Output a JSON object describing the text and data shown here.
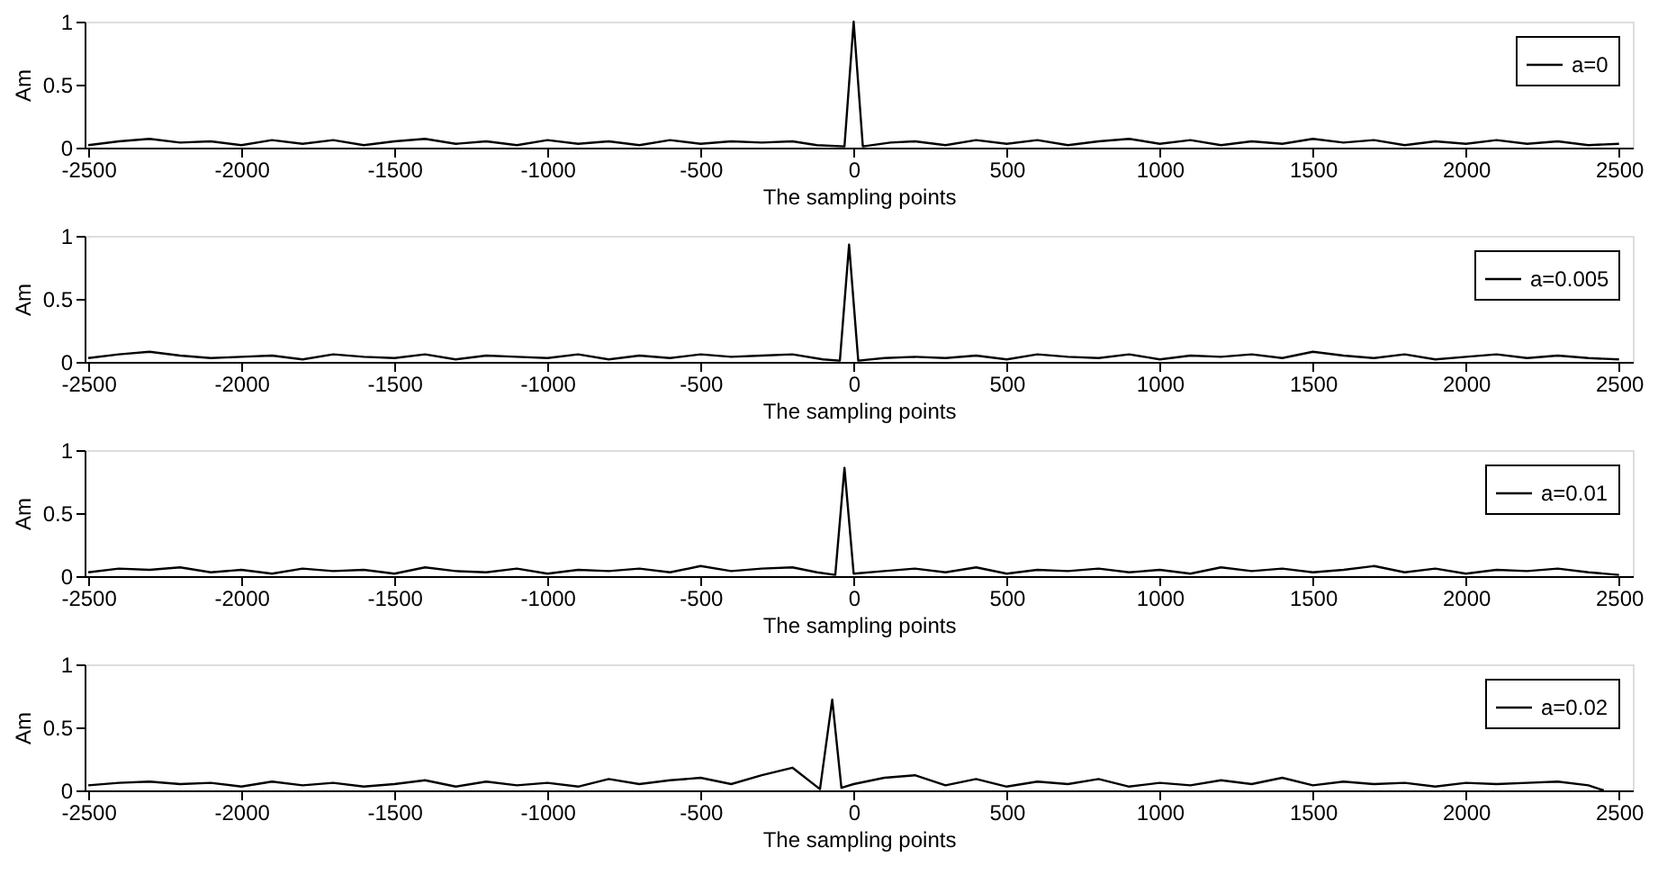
{
  "chart_data": [
    {
      "type": "line",
      "xlabel": "The sampling points",
      "ylabel": "Am",
      "xlim": [
        -2512,
        2545
      ],
      "xticks": [
        -2500,
        -2000,
        -1500,
        -1000,
        -500,
        0,
        500,
        1000,
        1500,
        2000,
        2500
      ],
      "ylim": [
        0,
        1
      ],
      "yticks": [
        0,
        0.5,
        1
      ],
      "grid": false,
      "legend": "top right",
      "x": [
        -2500,
        -2400,
        -2300,
        -2200,
        -2100,
        -2000,
        -1900,
        -1800,
        -1700,
        -1600,
        -1500,
        -1400,
        -1300,
        -1200,
        -1100,
        -1000,
        -900,
        -800,
        -700,
        -600,
        -500,
        -400,
        -300,
        -200,
        -120,
        -30,
        0,
        30,
        120,
        200,
        300,
        400,
        500,
        600,
        700,
        800,
        900,
        1000,
        1100,
        1200,
        1300,
        1400,
        1500,
        1600,
        1700,
        1800,
        1900,
        2000,
        2100,
        2200,
        2300,
        2400,
        2500
      ],
      "series": [
        {
          "name": "a=0",
          "color": "#000000",
          "values": [
            0.02,
            0.05,
            0.07,
            0.04,
            0.05,
            0.02,
            0.06,
            0.03,
            0.06,
            0.02,
            0.05,
            0.07,
            0.03,
            0.05,
            0.02,
            0.06,
            0.03,
            0.05,
            0.02,
            0.06,
            0.03,
            0.05,
            0.04,
            0.05,
            0.02,
            0.01,
            1.0,
            0.01,
            0.04,
            0.05,
            0.02,
            0.06,
            0.03,
            0.06,
            0.02,
            0.05,
            0.07,
            0.03,
            0.06,
            0.02,
            0.05,
            0.03,
            0.07,
            0.04,
            0.06,
            0.02,
            0.05,
            0.03,
            0.06,
            0.03,
            0.05,
            0.02,
            0.03
          ]
        }
      ]
    },
    {
      "type": "line",
      "xlabel": "The sampling points",
      "ylabel": "Am",
      "xlim": [
        -2512,
        2545
      ],
      "xticks": [
        -2500,
        -2000,
        -1500,
        -1000,
        -500,
        0,
        500,
        1000,
        1500,
        2000,
        2500
      ],
      "ylim": [
        0,
        1
      ],
      "yticks": [
        0,
        0.5,
        1
      ],
      "grid": false,
      "legend": "top right",
      "x": [
        -2500,
        -2400,
        -2300,
        -2200,
        -2100,
        -2000,
        -1900,
        -1800,
        -1700,
        -1600,
        -1500,
        -1400,
        -1300,
        -1200,
        -1100,
        -1000,
        -900,
        -800,
        -700,
        -600,
        -500,
        -400,
        -300,
        -200,
        -100,
        -45,
        -15,
        15,
        100,
        200,
        300,
        400,
        500,
        600,
        700,
        800,
        900,
        1000,
        1100,
        1200,
        1300,
        1400,
        1500,
        1600,
        1700,
        1800,
        1900,
        2000,
        2100,
        2200,
        2300,
        2400,
        2500
      ],
      "series": [
        {
          "name": "a=0.005",
          "color": "#000000",
          "values": [
            0.03,
            0.06,
            0.08,
            0.05,
            0.03,
            0.04,
            0.05,
            0.02,
            0.06,
            0.04,
            0.03,
            0.06,
            0.02,
            0.05,
            0.04,
            0.03,
            0.06,
            0.02,
            0.05,
            0.03,
            0.06,
            0.04,
            0.05,
            0.06,
            0.02,
            0.01,
            0.93,
            0.01,
            0.03,
            0.04,
            0.03,
            0.05,
            0.02,
            0.06,
            0.04,
            0.03,
            0.06,
            0.02,
            0.05,
            0.04,
            0.06,
            0.03,
            0.08,
            0.05,
            0.03,
            0.06,
            0.02,
            0.04,
            0.06,
            0.03,
            0.05,
            0.03,
            0.02
          ]
        }
      ]
    },
    {
      "type": "line",
      "xlabel": "The sampling points",
      "ylabel": "Am",
      "xlim": [
        -2512,
        2545
      ],
      "xticks": [
        -2500,
        -2000,
        -1500,
        -1000,
        -500,
        0,
        500,
        1000,
        1500,
        2000,
        2500
      ],
      "ylim": [
        0,
        1
      ],
      "yticks": [
        0,
        0.5,
        1
      ],
      "grid": false,
      "legend": "top right",
      "x": [
        -2500,
        -2400,
        -2300,
        -2200,
        -2100,
        -2000,
        -1900,
        -1800,
        -1700,
        -1600,
        -1500,
        -1400,
        -1300,
        -1200,
        -1100,
        -1000,
        -900,
        -800,
        -700,
        -600,
        -500,
        -400,
        -300,
        -200,
        -120,
        -60,
        -30,
        0,
        100,
        200,
        300,
        400,
        500,
        600,
        700,
        800,
        900,
        1000,
        1100,
        1200,
        1300,
        1400,
        1500,
        1600,
        1700,
        1800,
        1900,
        2000,
        2100,
        2200,
        2300,
        2400,
        2500
      ],
      "series": [
        {
          "name": "a=0.01",
          "color": "#000000",
          "values": [
            0.03,
            0.06,
            0.05,
            0.07,
            0.03,
            0.05,
            0.02,
            0.06,
            0.04,
            0.05,
            0.02,
            0.07,
            0.04,
            0.03,
            0.06,
            0.02,
            0.05,
            0.04,
            0.06,
            0.03,
            0.08,
            0.04,
            0.06,
            0.07,
            0.03,
            0.01,
            0.86,
            0.02,
            0.04,
            0.06,
            0.03,
            0.07,
            0.02,
            0.05,
            0.04,
            0.06,
            0.03,
            0.05,
            0.02,
            0.07,
            0.04,
            0.06,
            0.03,
            0.05,
            0.08,
            0.03,
            0.06,
            0.02,
            0.05,
            0.04,
            0.06,
            0.03,
            0.01
          ]
        }
      ]
    },
    {
      "type": "line",
      "xlabel": "The sampling points",
      "ylabel": "Am",
      "xlim": [
        -2512,
        2545
      ],
      "xticks": [
        -2500,
        -2000,
        -1500,
        -1000,
        -500,
        0,
        500,
        1000,
        1500,
        2000,
        2500
      ],
      "ylim": [
        0,
        1
      ],
      "yticks": [
        0,
        0.5,
        1
      ],
      "grid": false,
      "legend": "top right",
      "x": [
        -2500,
        -2400,
        -2300,
        -2200,
        -2100,
        -2000,
        -1900,
        -1800,
        -1700,
        -1600,
        -1500,
        -1400,
        -1300,
        -1200,
        -1100,
        -1000,
        -900,
        -800,
        -700,
        -600,
        -500,
        -400,
        -300,
        -200,
        -110,
        -70,
        -40,
        0,
        100,
        200,
        300,
        400,
        500,
        600,
        700,
        800,
        900,
        1000,
        1100,
        1200,
        1300,
        1400,
        1500,
        1600,
        1700,
        1800,
        1900,
        2000,
        2100,
        2200,
        2300,
        2400,
        2450
      ],
      "series": [
        {
          "name": "a=0.02",
          "color": "#000000",
          "values": [
            0.04,
            0.06,
            0.07,
            0.05,
            0.06,
            0.03,
            0.07,
            0.04,
            0.06,
            0.03,
            0.05,
            0.08,
            0.03,
            0.07,
            0.04,
            0.06,
            0.03,
            0.09,
            0.05,
            0.08,
            0.1,
            0.05,
            0.12,
            0.18,
            0.01,
            0.72,
            0.02,
            0.05,
            0.1,
            0.12,
            0.04,
            0.09,
            0.03,
            0.07,
            0.05,
            0.09,
            0.03,
            0.06,
            0.04,
            0.08,
            0.05,
            0.1,
            0.04,
            0.07,
            0.05,
            0.06,
            0.03,
            0.06,
            0.05,
            0.06,
            0.07,
            0.04,
            0.0
          ]
        }
      ]
    }
  ]
}
